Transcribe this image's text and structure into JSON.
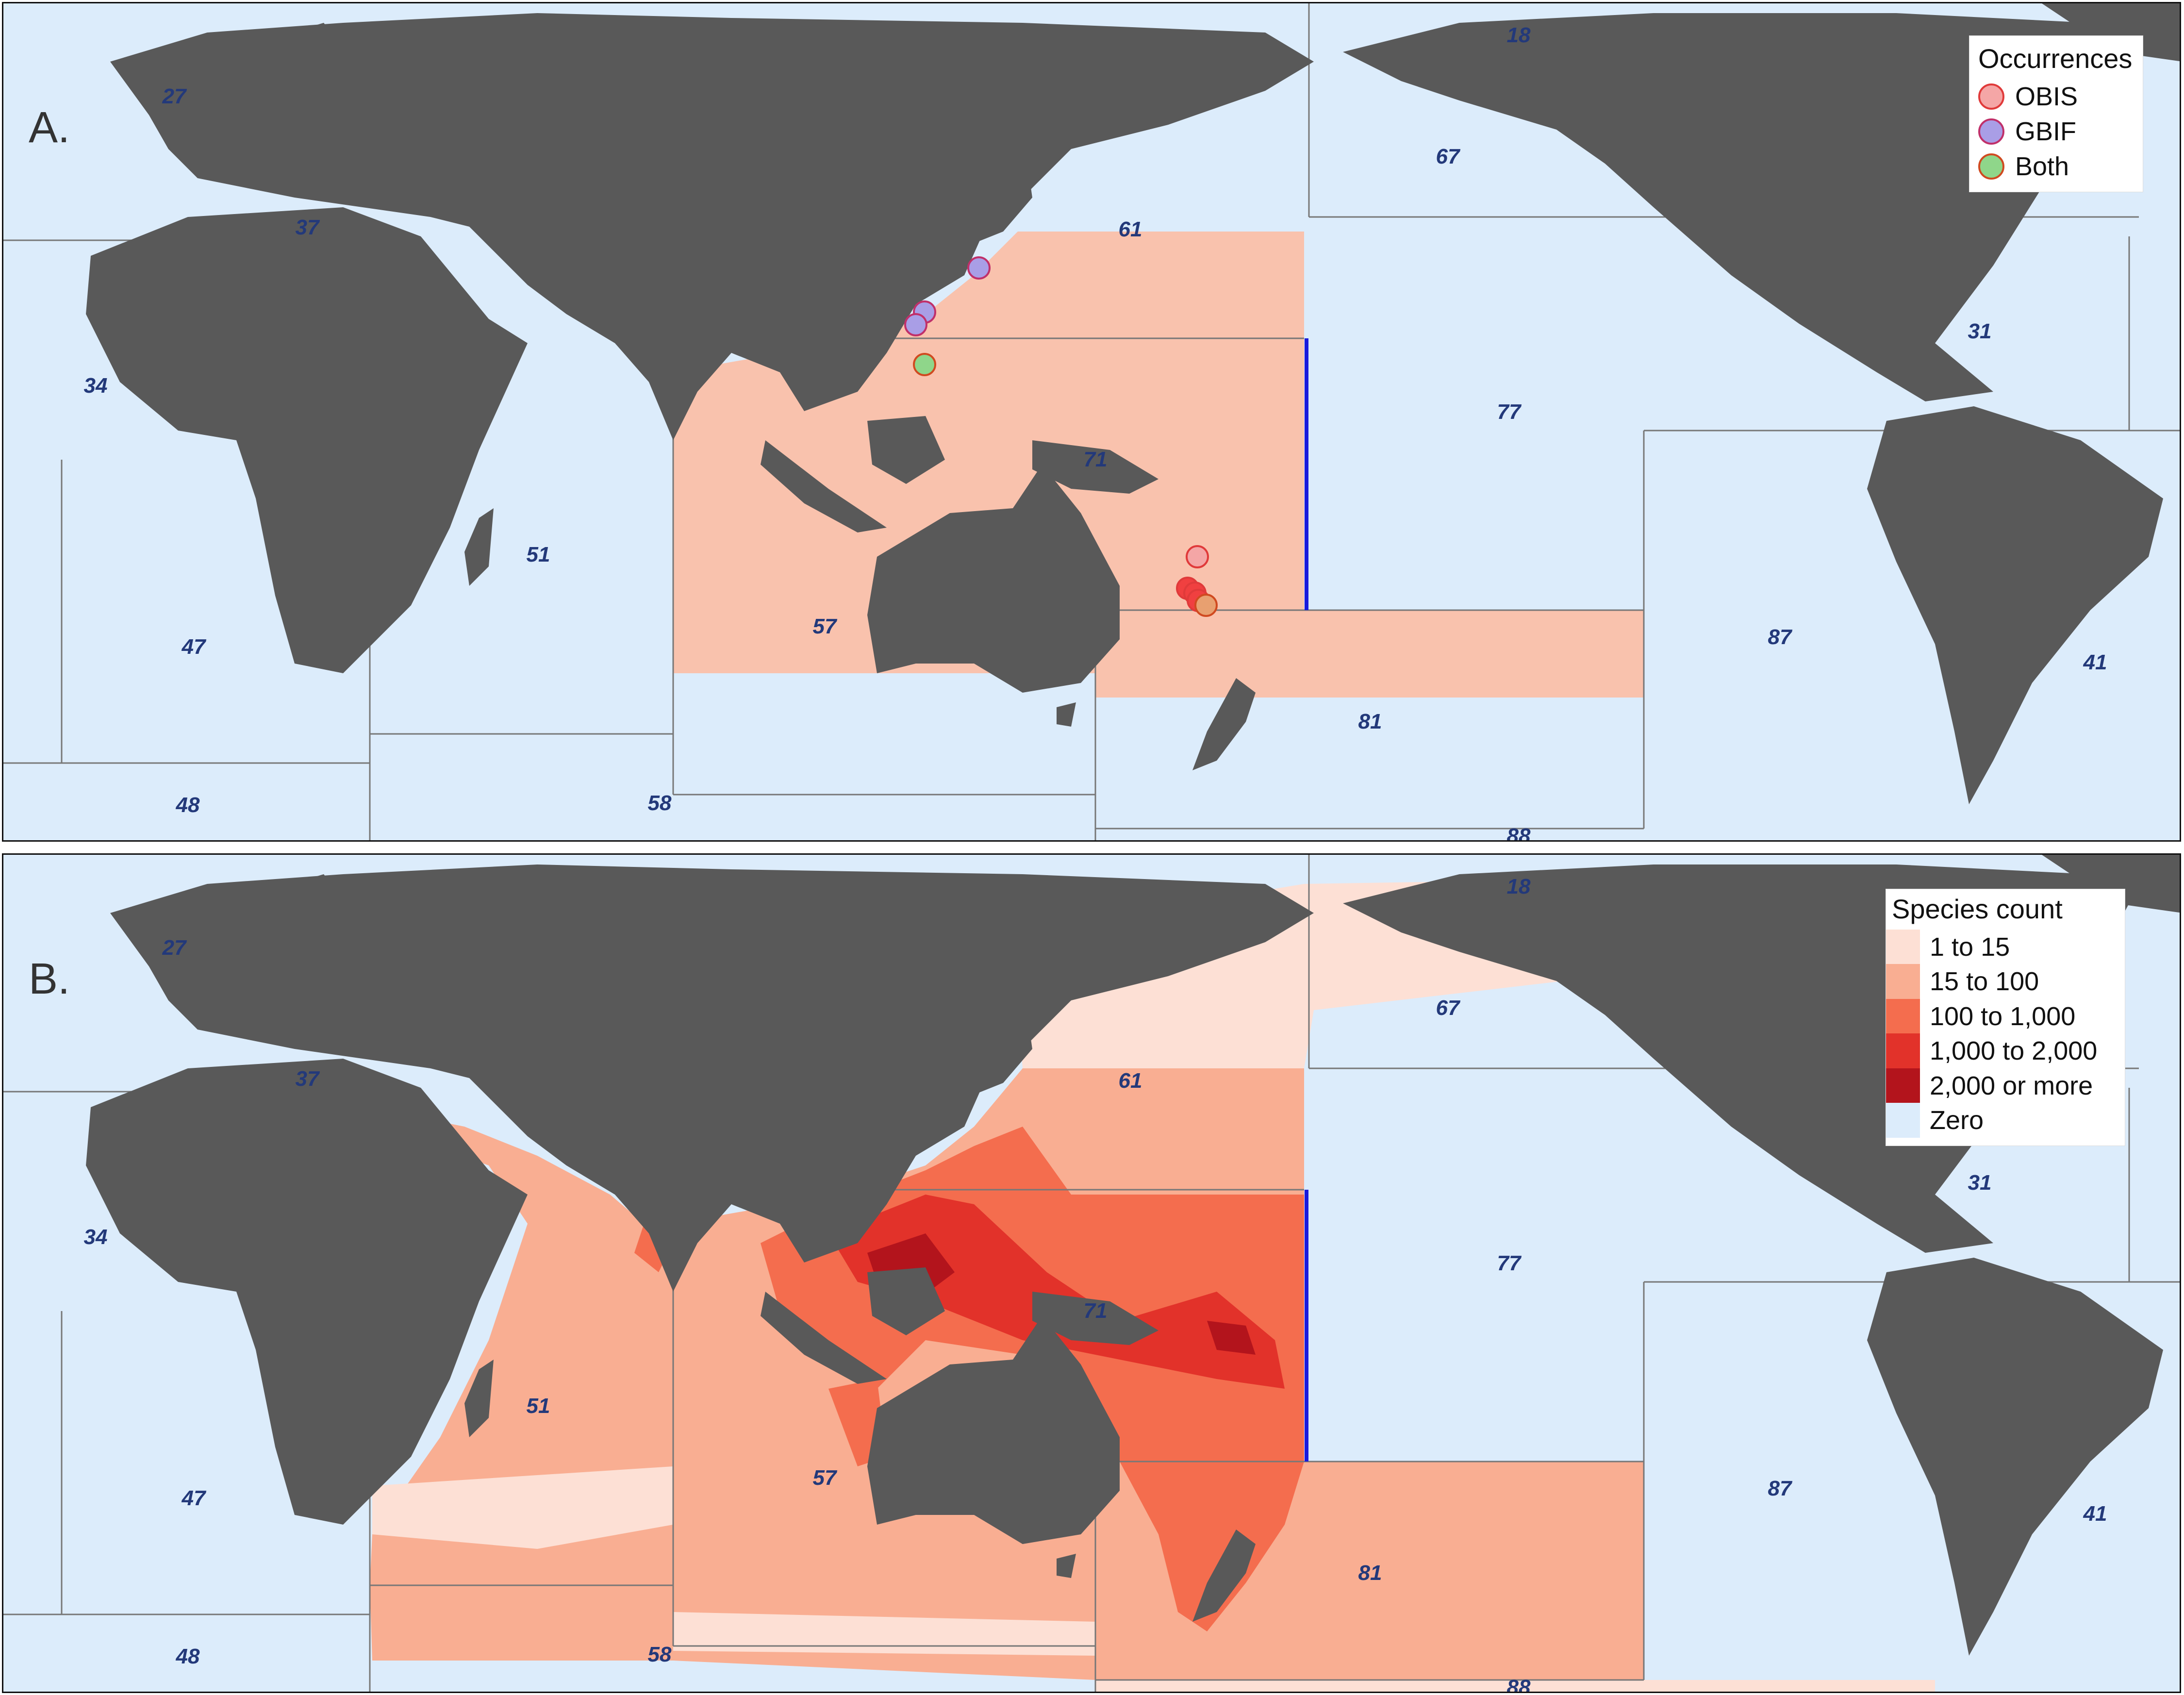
{
  "panel_a": {
    "label": "A.",
    "legend": {
      "title": "Occurrences",
      "items": [
        {
          "label": "OBIS",
          "color": "#f4a6a6",
          "stroke": "#e03a3a"
        },
        {
          "label": "GBIF",
          "color": "#a99ee6",
          "stroke": "#c0306a"
        },
        {
          "label": "Both",
          "color": "#8fd68a",
          "stroke": "#d04a20"
        }
      ]
    }
  },
  "panel_b": {
    "label": "B.",
    "legend": {
      "title": "Species count",
      "items": [
        {
          "label": "1 to 15",
          "color": "#fde0d5"
        },
        {
          "label": "15 to 100",
          "color": "#f9ae92"
        },
        {
          "label": "100 to 1,000",
          "color": "#f46d4e"
        },
        {
          "label": "1,000 to 2,000",
          "color": "#e2322a"
        },
        {
          "label": "2,000 or more",
          "color": "#b3141c"
        },
        {
          "label": "Zero",
          "color": "#dcecfb"
        }
      ]
    }
  },
  "fao_areas": [
    "18",
    "27",
    "37",
    "34",
    "47",
    "48",
    "51",
    "57",
    "58",
    "61",
    "67",
    "71",
    "77",
    "81",
    "87",
    "88",
    "31",
    "41"
  ],
  "colors": {
    "ocean": "#dcecfb",
    "land": "#595959",
    "boundary": "#777777",
    "meridian_line": "#1a1adb",
    "label": "#23397a"
  }
}
